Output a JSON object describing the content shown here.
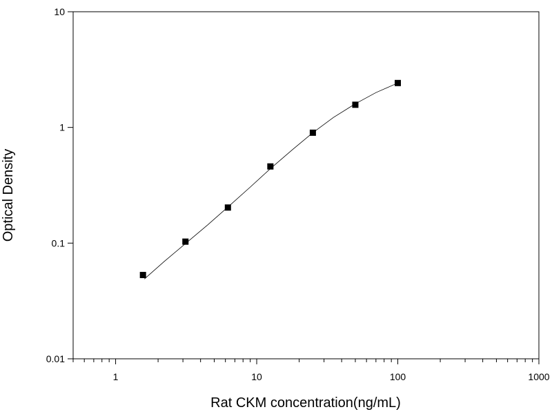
{
  "chart_data": {
    "type": "scatter",
    "xlabel": "Rat CKM concentration(ng/mL)",
    "ylabel": "Optical Density",
    "x_scale": "log",
    "y_scale": "log",
    "xlim": [
      0.5,
      1000
    ],
    "ylim": [
      0.01,
      10
    ],
    "x_ticks": [
      {
        "value": 1,
        "label": "1"
      },
      {
        "value": 10,
        "label": "10"
      },
      {
        "value": 100,
        "label": "100"
      },
      {
        "value": 1000,
        "label": "1000"
      }
    ],
    "y_ticks": [
      {
        "value": 0.01,
        "label": "0.01"
      },
      {
        "value": 0.1,
        "label": "0.1"
      },
      {
        "value": 1,
        "label": "1"
      },
      {
        "value": 10,
        "label": "10"
      }
    ],
    "grid": false,
    "legend": "none",
    "series": [
      {
        "marker": "square",
        "color": "#000000",
        "points": [
          {
            "x": 1.5625,
            "y": 0.053
          },
          {
            "x": 3.125,
            "y": 0.103
          },
          {
            "x": 6.25,
            "y": 0.203
          },
          {
            "x": 12.5,
            "y": 0.46
          },
          {
            "x": 25,
            "y": 0.9
          },
          {
            "x": 50,
            "y": 1.57
          },
          {
            "x": 100,
            "y": 2.42
          }
        ]
      }
    ],
    "fit_curve": {
      "color": "#000000",
      "points": [
        {
          "x": 1.6,
          "y": 0.049
        },
        {
          "x": 2.2,
          "y": 0.069
        },
        {
          "x": 3.125,
          "y": 0.099
        },
        {
          "x": 4.5,
          "y": 0.144
        },
        {
          "x": 6.25,
          "y": 0.205
        },
        {
          "x": 9,
          "y": 0.305
        },
        {
          "x": 12.5,
          "y": 0.44
        },
        {
          "x": 18,
          "y": 0.645
        },
        {
          "x": 25,
          "y": 0.9
        },
        {
          "x": 35,
          "y": 1.22
        },
        {
          "x": 50,
          "y": 1.6
        },
        {
          "x": 70,
          "y": 2.0
        },
        {
          "x": 100,
          "y": 2.42
        }
      ]
    }
  }
}
